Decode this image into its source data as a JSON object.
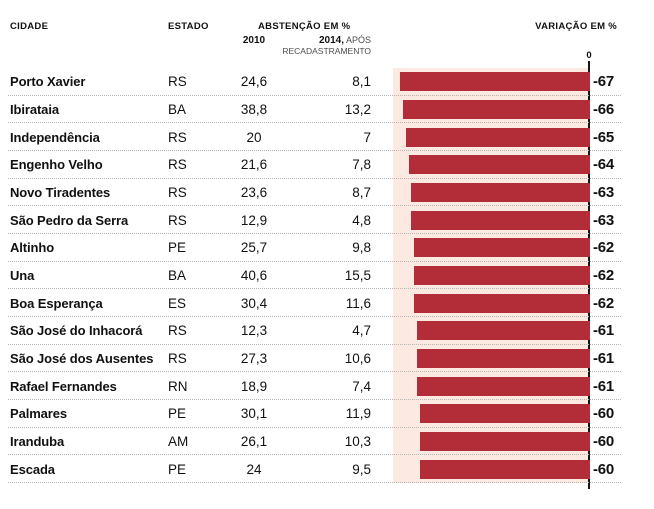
{
  "header": {
    "cidade": "CIDADE",
    "estado": "ESTADO",
    "abstencao": "ABSTENÇÃO EM %",
    "col_2010": "2010",
    "col_2014_bold": "2014,",
    "col_2014_light": " APÓS",
    "col_2014_line2": "RECADASTRAMENTO",
    "variacao": "VARIAÇÃO EM %",
    "zero_tick": "0"
  },
  "colors": {
    "bar": "#b22d38",
    "chart_bg": "#fce9e2",
    "axis": "#161616",
    "divider": "#b5b5b5",
    "text": "#111111"
  },
  "rows": [
    {
      "city": "Porto Xavier",
      "state": "RS",
      "y2010": "24,6",
      "y2014": "8,1",
      "variation": "-67"
    },
    {
      "city": "Ibirataia",
      "state": "BA",
      "y2010": "38,8",
      "y2014": "13,2",
      "variation": "-66"
    },
    {
      "city": "Independência",
      "state": "RS",
      "y2010": "20",
      "y2014": "7",
      "variation": "-65"
    },
    {
      "city": "Engenho Velho",
      "state": "RS",
      "y2010": "21,6",
      "y2014": "7,8",
      "variation": "-64"
    },
    {
      "city": "Novo Tiradentes",
      "state": "RS",
      "y2010": "23,6",
      "y2014": "8,7",
      "variation": "-63"
    },
    {
      "city": "São Pedro da Serra",
      "state": "RS",
      "y2010": "12,9",
      "y2014": "4,8",
      "variation": "-63"
    },
    {
      "city": "Altinho",
      "state": "PE",
      "y2010": "25,7",
      "y2014": "9,8",
      "variation": "-62"
    },
    {
      "city": "Una",
      "state": "BA",
      "y2010": "40,6",
      "y2014": "15,5",
      "variation": "-62"
    },
    {
      "city": "Boa Esperança",
      "state": "ES",
      "y2010": "30,4",
      "y2014": "11,6",
      "variation": "-62"
    },
    {
      "city": "São José do Inhacorá",
      "state": "RS",
      "y2010": "12,3",
      "y2014": "4,7",
      "variation": "-61"
    },
    {
      "city": "São José dos Ausentes",
      "state": "RS",
      "y2010": "27,3",
      "y2014": "10,6",
      "variation": "-61"
    },
    {
      "city": "Rafael Fernandes",
      "state": "RN",
      "y2010": "18,9",
      "y2014": "7,4",
      "variation": "-61"
    },
    {
      "city": "Palmares",
      "state": "PE",
      "y2010": "30,1",
      "y2014": "11,9",
      "variation": "-60"
    },
    {
      "city": "Iranduba",
      "state": "AM",
      "y2010": "26,1",
      "y2014": "10,3",
      "variation": "-60"
    },
    {
      "city": "Escada",
      "state": "PE",
      "y2010": "24",
      "y2014": "9,5",
      "variation": "-60"
    }
  ],
  "chart_data": {
    "type": "bar",
    "orientation": "horizontal",
    "title": "Abstenção em % e Variação em %",
    "categories": [
      "Porto Xavier",
      "Ibirataia",
      "Independência",
      "Engenho Velho",
      "Novo Tiradentes",
      "São Pedro da Serra",
      "Altinho",
      "Una",
      "Boa Esperança",
      "São José do Inhacorá",
      "São José dos Ausentes",
      "Rafael Fernandes",
      "Palmares",
      "Iranduba",
      "Escada"
    ],
    "states": [
      "RS",
      "BA",
      "RS",
      "RS",
      "RS",
      "RS",
      "PE",
      "BA",
      "ES",
      "RS",
      "RS",
      "RN",
      "PE",
      "AM",
      "PE"
    ],
    "series": [
      {
        "name": "Abstenção em % 2010",
        "values": [
          24.6,
          38.8,
          20,
          21.6,
          23.6,
          12.9,
          25.7,
          40.6,
          30.4,
          12.3,
          27.3,
          18.9,
          30.1,
          26.1,
          24
        ]
      },
      {
        "name": "Abstenção em % 2014, após recadastramento",
        "values": [
          8.1,
          13.2,
          7,
          7.8,
          8.7,
          4.8,
          9.8,
          15.5,
          11.6,
          4.7,
          10.6,
          7.4,
          11.9,
          10.3,
          9.5
        ]
      },
      {
        "name": "Variação em %",
        "values": [
          -67,
          -66,
          -65,
          -64,
          -63,
          -63,
          -62,
          -62,
          -62,
          -61,
          -61,
          -61,
          -60,
          -60,
          -60
        ]
      }
    ],
    "bar_series": "Variação em %",
    "xlim": [
      -67,
      0
    ],
    "axis_zero_label": "0",
    "grid": "dotted-row-separators",
    "legend_position": "none"
  }
}
